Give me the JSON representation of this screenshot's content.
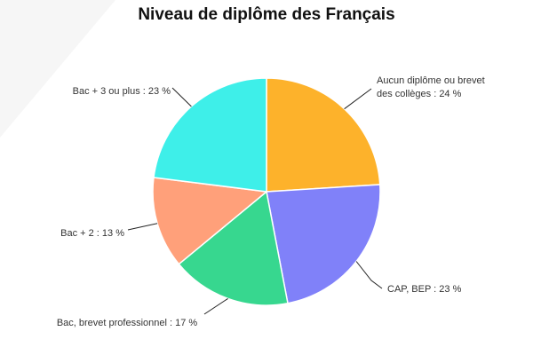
{
  "chart_data": {
    "type": "pie",
    "title": "Niveau de diplôme des Français",
    "slices": [
      {
        "lines": [
          "Aucun diplôme ou brevet",
          "des collèges : 24 %"
        ],
        "label": "Aucun diplôme ou brevet des collèges : 24 %",
        "value": 24,
        "color": "#FDB22B"
      },
      {
        "lines": [
          "CAP, BEP : 23 %"
        ],
        "label": "CAP, BEP : 23 %",
        "value": 23,
        "color": "#8081F9"
      },
      {
        "lines": [
          "Bac, brevet professionnel : 17 %"
        ],
        "label": "Bac, brevet professionnel : 17 %",
        "value": 17,
        "color": "#37D78F"
      },
      {
        "lines": [
          "Bac + 2 : 13 %"
        ],
        "label": "Bac + 2 : 13 %",
        "value": 13,
        "color": "#FFA07A"
      },
      {
        "lines": [
          "Bac + 3 ou plus : 23 %"
        ],
        "label": "Bac + 3 ou plus : 23 %",
        "value": 23,
        "color": "#3EEFE9"
      }
    ],
    "legend": "none",
    "grid": false
  }
}
